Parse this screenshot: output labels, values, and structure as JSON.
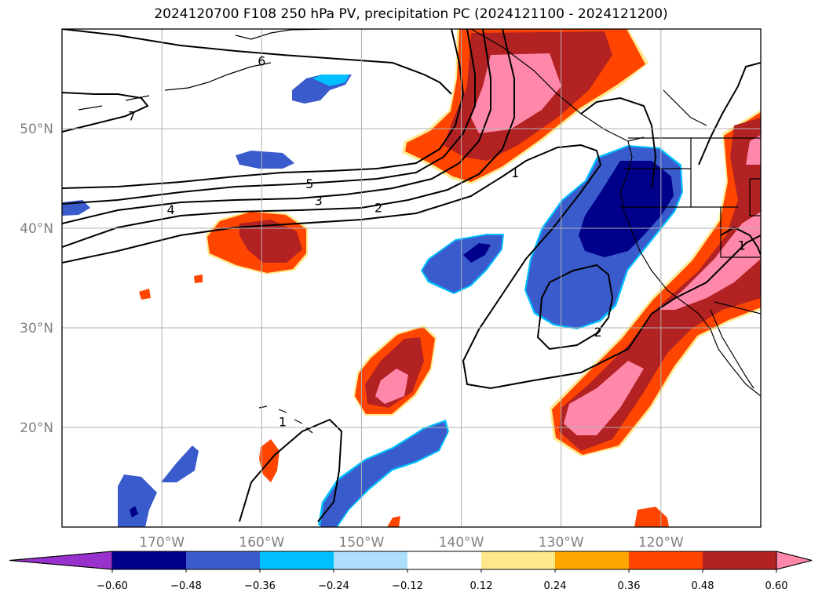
{
  "title": "2024120700 F108 250 hPa PV, precipitation PC (2024121100 - 2024121200)",
  "map": {
    "lon_range": [
      -180,
      -110
    ],
    "lat_range": [
      10,
      60
    ],
    "lat_ticks": [
      {
        "lat": 50,
        "label": "50°N"
      },
      {
        "lat": 40,
        "label": "40°N"
      },
      {
        "lat": 30,
        "label": "30°N"
      },
      {
        "lat": 20,
        "label": "20°N"
      }
    ],
    "lon_ticks": [
      {
        "lon": -170,
        "label": "170°W"
      },
      {
        "lon": -160,
        "label": "160°W"
      },
      {
        "lon": -150,
        "label": "150°W"
      },
      {
        "lon": -140,
        "label": "140°W"
      },
      {
        "lon": -130,
        "label": "130°W"
      },
      {
        "lon": -120,
        "label": "120°W"
      }
    ],
    "grid": true,
    "contour_labels": [
      {
        "text": "6",
        "lon": -160,
        "lat": 56.8
      },
      {
        "text": "7",
        "lon": -173,
        "lat": 51.3
      },
      {
        "text": "5",
        "lon": -155.2,
        "lat": 44.5
      },
      {
        "text": "4",
        "lon": -169.1,
        "lat": 41.9
      },
      {
        "text": "3",
        "lon": -154.3,
        "lat": 42.8
      },
      {
        "text": "2",
        "lon": -148.3,
        "lat": 42.1
      },
      {
        "text": "1",
        "lon": -134.6,
        "lat": 45.6
      },
      {
        "text": "2",
        "lon": -126.3,
        "lat": 29.6
      },
      {
        "text": "1",
        "lon": -157.9,
        "lat": 20.6
      },
      {
        "text": "1",
        "lon": -111.9,
        "lat": 38.3
      }
    ]
  },
  "colorbar": {
    "levels": [
      -0.6,
      -0.48,
      -0.36,
      -0.24,
      -0.12,
      0.12,
      0.24,
      0.36,
      0.48,
      0.6
    ],
    "labels": [
      "−0.60",
      "−0.48",
      "−0.36",
      "−0.24",
      "−0.12",
      "0.12",
      "0.24",
      "0.36",
      "0.48",
      "0.60"
    ],
    "colors": [
      "#9932CC",
      "#00008B",
      "#3A5BCB",
      "#00BFFF",
      "#ADDFFC",
      "#FFFFFF",
      "#FFE88C",
      "#FFA500",
      "#FF4500",
      "#B22222",
      "#FF88AA"
    ],
    "extend": "both"
  }
}
